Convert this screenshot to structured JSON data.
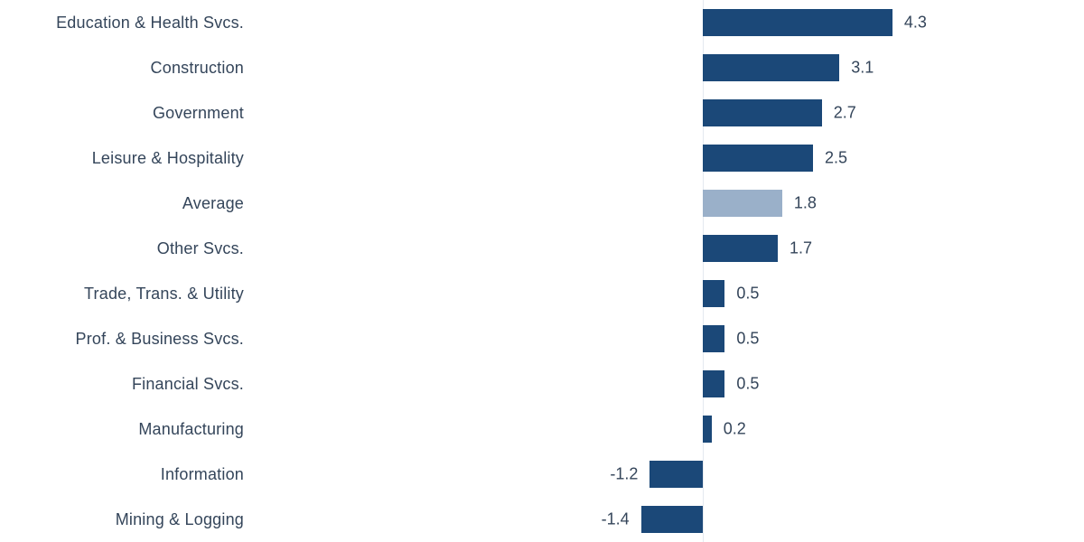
{
  "chart_data": {
    "type": "bar",
    "orientation": "horizontal",
    "title": "",
    "xlabel": "",
    "ylabel": "",
    "categories": [
      "Education & Health Svcs.",
      "Construction",
      "Government",
      "Leisure & Hospitality",
      "Average",
      "Other Svcs.",
      "Trade, Trans. & Utility",
      "Prof. & Business Svcs.",
      "Financial Svcs.",
      "Manufacturing",
      "Information",
      "Mining & Logging"
    ],
    "values": [
      4.3,
      3.1,
      2.7,
      2.5,
      1.8,
      1.7,
      0.5,
      0.5,
      0.5,
      0.2,
      -1.2,
      -1.4
    ],
    "value_labels": [
      "4.3",
      "3.1",
      "2.7",
      "2.5",
      "1.8",
      "1.7",
      "0.5",
      "0.5",
      "0.5",
      "0.2",
      "-1.2",
      "-1.4"
    ],
    "highlight_index": 4,
    "highlight_category": "Average",
    "xlim": [
      -1.5,
      4.5
    ],
    "grid": false,
    "legend": "none",
    "zero_axis_line": true,
    "colors": {
      "bar": "#1b4878",
      "highlight_bar": "#9ab0c9",
      "text": "#34455a",
      "axis_line": "#e4e9ef",
      "background": "#ffffff"
    }
  }
}
